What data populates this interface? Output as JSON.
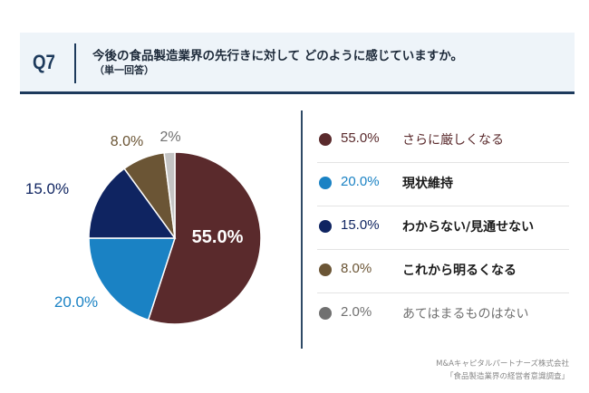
{
  "header": {
    "qnum": "Q7",
    "title": "今後の食品製造業界の先行きに対して どのように感じていますか。",
    "subtitle": "（単一回答）"
  },
  "chart_data": {
    "type": "pie",
    "title": "今後の食品製造業界の先行きに対してどのように感じていますか。",
    "categories": [
      "さらに厳しくなる",
      "現状維持",
      "わからない/見通せない",
      "これから明るくなる",
      "あてはまるものはない"
    ],
    "values": [
      55.0,
      20.0,
      15.0,
      8.0,
      2.0
    ],
    "labels": [
      "55.0%",
      "20.0%",
      "15.0%",
      "8.0%",
      "2.0%"
    ],
    "pie_labels": [
      "55.0%",
      "20.0%",
      "15.0%",
      "8.0%",
      "2%"
    ],
    "colors": [
      "#5a2a2c",
      "#1a82c4",
      "#0f2461",
      "#6b5535",
      "#c4c4c4"
    ],
    "legend_dot_colors": [
      "#5a2a2c",
      "#1a82c4",
      "#0f2461",
      "#6b5535",
      "#707070"
    ],
    "pct_colors": [
      "#5a2a2c",
      "#1a82c4",
      "#0f2461",
      "#6b5535",
      "#707070"
    ],
    "label_colors": [
      "#5a2a2c",
      "#1a1a1a",
      "#1a1a1a",
      "#1a1a1a",
      "#707070"
    ],
    "legend": "right"
  },
  "credit": {
    "line1": "M&Aキャピタルパートナーズ株式会社",
    "line2": "「食品製造業界の経営者意識調査」"
  }
}
